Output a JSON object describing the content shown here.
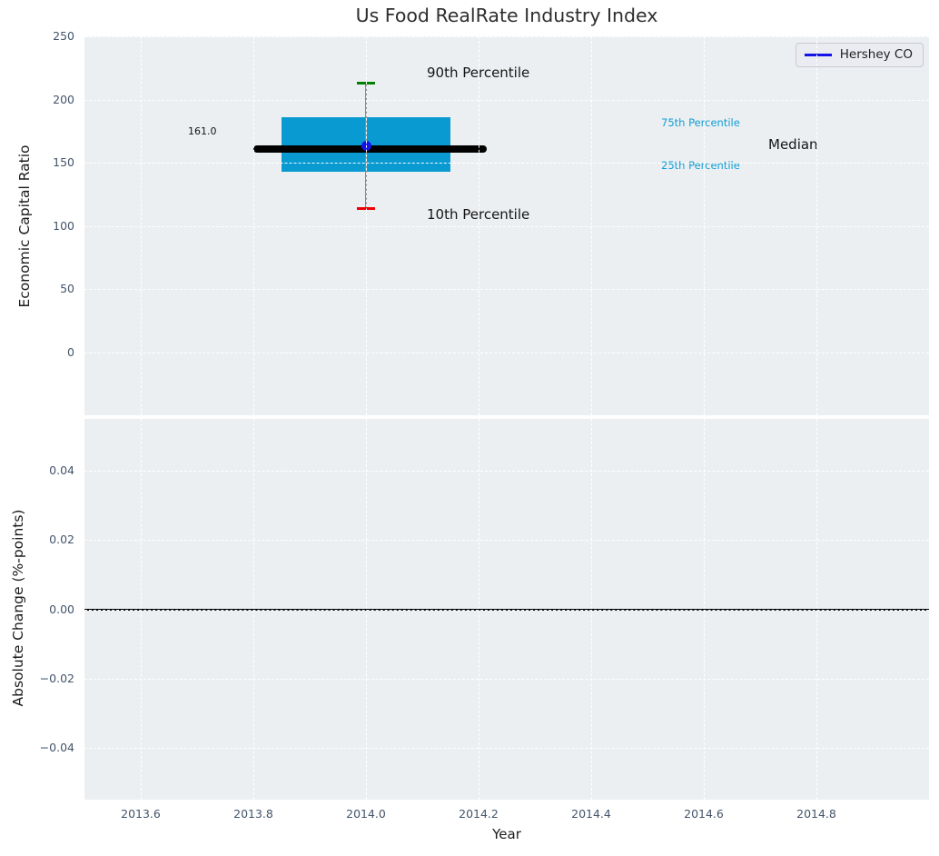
{
  "title": "Us Food RealRate Industry Index",
  "axis_labels": {
    "x": "Year",
    "y_top": "Economic Capital Ratio",
    "y_bottom": "Absolute Change (%-points)"
  },
  "legend": {
    "label": "Hershey CO",
    "line_color": "#1414e6"
  },
  "annotations": {
    "p90": "90th Percentile",
    "p75": "75th Percentile",
    "median": "Median",
    "p25": "25th Percentile",
    "p10": "10th Percentile",
    "median_value_label": "161.0"
  },
  "colors": {
    "box": "#0a9ad2",
    "percentile_text": "#0f9ed6",
    "median_line": "#000000",
    "p90_cap": "#008000",
    "p10_cap": "#ee0000",
    "whisker": "#8a8a8a",
    "series_point": "#1414e6",
    "axes_background": "#eceff1",
    "grid": "#ffffff",
    "tick_text": "#44546a"
  },
  "chart_data": [
    {
      "type": "box",
      "title": "Us Food RealRate Industry Index",
      "xlabel": "Year",
      "ylabel": "Economic Capital Ratio",
      "xlim": [
        2013.5,
        2015.0
      ],
      "ylim": [
        -50,
        250
      ],
      "xticks": [
        2013.6,
        2013.8,
        2014.0,
        2014.2,
        2014.4,
        2014.6,
        2014.8
      ],
      "yticks": [
        250,
        200,
        150,
        100,
        50,
        0
      ],
      "grid": "white dashed",
      "legend_position": "upper right",
      "box": {
        "x": 2014.0,
        "p10": 114,
        "p25": 143,
        "median": 161.0,
        "p75": 186,
        "p90": 213,
        "box_halfwidth": 0.15,
        "median_halfwidth": 0.2
      },
      "series": [
        {
          "name": "Hershey CO",
          "x": 2014.0,
          "y": 163,
          "color": "#1414e6",
          "marker": "dot"
        }
      ]
    },
    {
      "type": "line",
      "xlabel": "Year",
      "ylabel": "Absolute Change (%-points)",
      "xlim": [
        2013.5,
        2015.0
      ],
      "ylim": [
        -0.055,
        0.055
      ],
      "xticks": [
        2013.6,
        2013.8,
        2014.0,
        2014.2,
        2014.4,
        2014.6,
        2014.8
      ],
      "yticks": [
        0.04,
        0.02,
        0.0,
        -0.02,
        -0.04
      ],
      "grid": "white dashed",
      "hline": 0.0,
      "series": []
    }
  ]
}
